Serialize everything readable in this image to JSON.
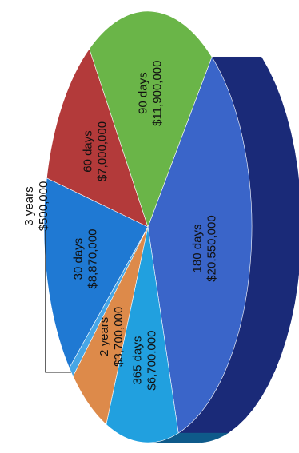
{
  "chart_data": {
    "type": "pie",
    "title": "",
    "slices": [
      {
        "label": "180 days",
        "value": 20550000,
        "value_label": "$20,550,000",
        "color": "#3a65c9",
        "side_color": "#1a2a78"
      },
      {
        "label": "365 days",
        "value": 6700000,
        "value_label": "$6,700,000",
        "color": "#21a0df",
        "side_color": "#0e5a8a"
      },
      {
        "label": "2 years",
        "value": 3700000,
        "value_label": "$3,700,000",
        "color": "#dd8a4a",
        "side_color": "#8a4e20"
      },
      {
        "label": "3 years",
        "value": 500000,
        "value_label": "$500,000",
        "color": "#46a6e6",
        "side_color": "#1e5f8a"
      },
      {
        "label": "30 days",
        "value": 8870000,
        "value_label": "$8,870,000",
        "color": "#1f79d3",
        "side_color": "#0f3f72"
      },
      {
        "label": "60 days",
        "value": 7000000,
        "value_label": "$7,000,000",
        "color": "#b33a3a",
        "side_color": "#5e1a1a"
      },
      {
        "label": "90 days",
        "value": 11900000,
        "value_label": "$11,900,000",
        "color": "#6ab548",
        "side_color": "#0f3a18"
      }
    ],
    "label_orientation": "rotated-90-ccw",
    "style": "3d"
  }
}
